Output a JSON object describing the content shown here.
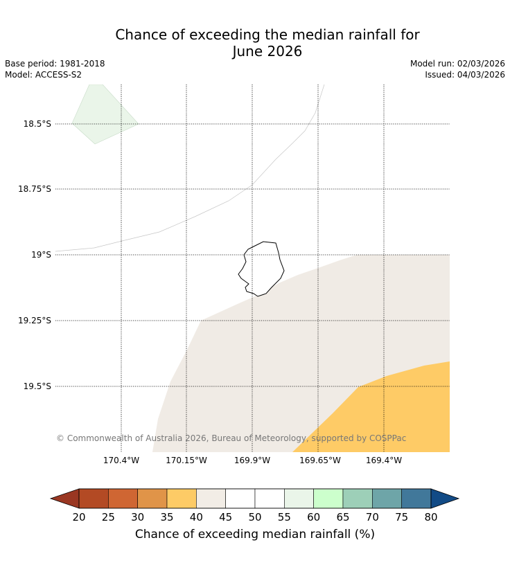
{
  "title_line1": "Chance of exceeding the median rainfall for",
  "title_line2": "June 2026",
  "base_period": "Base period: 1981-2018",
  "model": "Model: ACCESS-S2",
  "model_run": "Model run: 02/03/2026",
  "issued": "Issued: 04/03/2026",
  "lat_labels": [
    "18.5°S",
    "18.75°S",
    "19°S",
    "19.25°S",
    "19.5°S"
  ],
  "lon_labels": [
    "170.4°W",
    "170.15°W",
    "169.9°W",
    "169.65°W",
    "169.4°W"
  ],
  "copyright": "© Commonwealth of Australia 2026, Bureau of Meteorology, supported by COSPPac",
  "colorbar": {
    "label": "Chance of exceeding median rainfall (%)",
    "ticks": [
      "20",
      "25",
      "30",
      "35",
      "40",
      "45",
      "50",
      "55",
      "60",
      "65",
      "70",
      "75",
      "80"
    ],
    "colors": [
      "#b34a24",
      "#cf6633",
      "#e09448",
      "#fdcb66",
      "#f2ede6",
      "#ffffff",
      "#ffffff",
      "#eaf5e9",
      "#ccffcc",
      "#9dcfb8",
      "#6ea5a8",
      "#41789a"
    ],
    "under_color": "#9a3722",
    "over_color": "#124b86"
  },
  "colors": {
    "cat_45_50": "#f0ebe5",
    "cat_35_40": "#fecb66",
    "cat_55_60": "#eaf5e9"
  }
}
